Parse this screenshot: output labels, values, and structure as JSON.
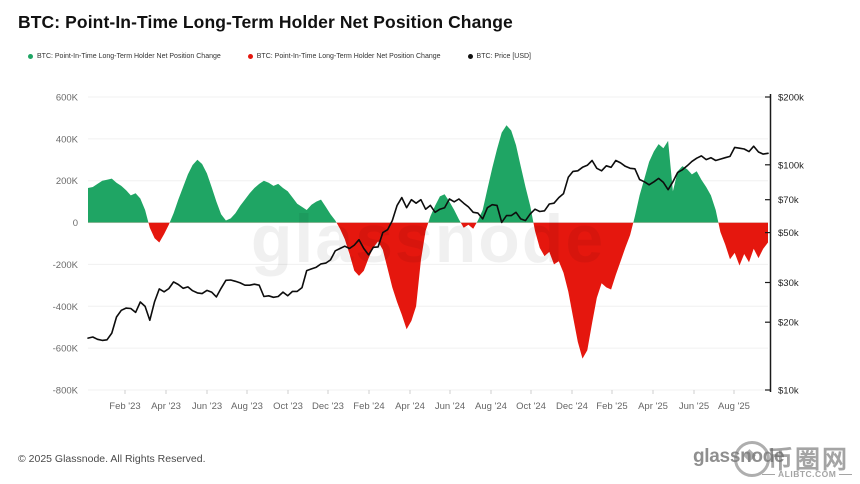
{
  "title": "BTC: Point-In-Time Long-Term Holder Net Position Change",
  "legend": [
    {
      "label": "BTC: Point-In-Time Long-Term Holder Net Position Change",
      "color": "#1fa564"
    },
    {
      "label": "BTC: Point-In-Time Long-Term Holder Net Position Change",
      "color": "#e5170e"
    },
    {
      "label": "BTC: Price [USD]",
      "color": "#111111"
    }
  ],
  "footer": {
    "copyright": "© 2025 Glassnode. All Rights Reserved.",
    "logo_text": "glassnode"
  },
  "watermark": {
    "center_text": "glassnode",
    "stamp_chars": "币圈网",
    "stamp_site": "ALIBTC.COM"
  },
  "colors": {
    "positive": "#1fa564",
    "negative": "#e5170e",
    "price_line": "#0d0d0d",
    "grid": "#f0f0f0",
    "left_tick_text": "#6b6b6b",
    "right_tick_text": "#1f1f1f",
    "x_tick_text": "#666666",
    "right_axis_line": "#1a1a1a"
  },
  "chart_data": {
    "type": "area+line",
    "x_range": {
      "start": "Dec 2022",
      "end": "Sep 2025",
      "sampling": "weekly"
    },
    "x_tick_labels": [
      "Feb '23",
      "Apr '23",
      "Jun '23",
      "Aug '23",
      "Oct '23",
      "Dec '23",
      "Feb '24",
      "Apr '24",
      "Jun '24",
      "Aug '24",
      "Oct '24",
      "Dec '24",
      "Feb '25",
      "Apr '25",
      "Jun '25",
      "Aug '25"
    ],
    "left_axis": {
      "ticks": [
        "600K",
        "400K",
        "200K",
        "0",
        "-200K",
        "-400K",
        "-600K",
        "-800K"
      ],
      "max_kBTC": 600,
      "min_kBTC": -800,
      "scale": "linear"
    },
    "right_axis": {
      "ticks": [
        "$200k",
        "$100k",
        "$70k",
        "$50k",
        "$30k",
        "$20k",
        "$10k"
      ],
      "tick_values_kUSD": [
        200,
        100,
        70,
        50,
        30,
        20,
        10
      ],
      "max_kUSD": 200,
      "min_kUSD": 10,
      "scale": "log"
    },
    "series": [
      {
        "name": "BTC: Point-In-Time Long-Term Holder Net Position Change",
        "axis": "left",
        "unit": "kBTC",
        "style": "area, green when positive, red when negative",
        "values_kBTC": [
          165,
          170,
          185,
          200,
          205,
          210,
          190,
          175,
          155,
          130,
          140,
          115,
          60,
          -25,
          -75,
          -95,
          -55,
          -10,
          45,
          110,
          170,
          230,
          275,
          300,
          280,
          235,
          170,
          100,
          40,
          10,
          20,
          45,
          80,
          110,
          140,
          165,
          185,
          200,
          190,
          175,
          185,
          165,
          150,
          120,
          90,
          75,
          60,
          85,
          100,
          110,
          75,
          40,
          10,
          -30,
          -80,
          -150,
          -230,
          -255,
          -230,
          -170,
          -120,
          -90,
          -130,
          -220,
          -310,
          -380,
          -440,
          -510,
          -470,
          -400,
          -180,
          -40,
          30,
          80,
          125,
          135,
          100,
          60,
          15,
          -25,
          -10,
          -30,
          10,
          60,
          160,
          260,
          350,
          430,
          465,
          440,
          370,
          270,
          170,
          80,
          -40,
          -120,
          -160,
          -140,
          -200,
          -185,
          -240,
          -330,
          -450,
          -570,
          -650,
          -610,
          -480,
          -360,
          -290,
          -310,
          -320,
          -250,
          -185,
          -120,
          -60,
          30,
          130,
          210,
          290,
          340,
          375,
          355,
          390,
          150,
          245,
          270,
          255,
          230,
          245,
          205,
          170,
          130,
          60,
          -45,
          -105,
          -175,
          -145,
          -205,
          -150,
          -190,
          -125,
          -170,
          -125,
          -95
        ]
      },
      {
        "name": "BTC: Price [USD]",
        "axis": "right",
        "unit": "kUSD",
        "style": "line, black, log scale",
        "values_kUSD": [
          17.0,
          17.2,
          16.8,
          16.6,
          16.7,
          17.9,
          21.1,
          22.6,
          23.1,
          23.0,
          22.1,
          24.6,
          23.5,
          20.4,
          24.7,
          28.1,
          27.3,
          28.2,
          30.2,
          29.4,
          28.3,
          28.7,
          27.6,
          27.0,
          26.8,
          27.7,
          27.2,
          25.9,
          28.3,
          30.7,
          30.8,
          30.4,
          29.9,
          29.2,
          29.2,
          29.5,
          29.2,
          26.0,
          26.2,
          25.8,
          26.0,
          27.2,
          26.2,
          27.4,
          27.4,
          28.5,
          33.9,
          34.5,
          35.1,
          36.3,
          36.6,
          37.8,
          41.5,
          42.5,
          43.5,
          42.5,
          44.0,
          46.5,
          42.5,
          39.8,
          43.0,
          43.2,
          50.0,
          51.5,
          56.5,
          66.0,
          71.5,
          64.5,
          70.0,
          67.5,
          70.0,
          63.5,
          66.0,
          61.5,
          63.5,
          64.5,
          70.5,
          68.5,
          70.5,
          67.5,
          65.0,
          61.5,
          61.0,
          57.5,
          64.5,
          66.5,
          66.0,
          55.5,
          59.5,
          59.5,
          61.5,
          57.5,
          56.5,
          60.5,
          63.5,
          62.0,
          62.5,
          67.0,
          67.5,
          71.5,
          74.5,
          88.0,
          93.5,
          94.0,
          97.5,
          99.5,
          104.5,
          96.5,
          94.0,
          99.0,
          97.5,
          104.5,
          102.0,
          98.5,
          96.5,
          96.0,
          86.0,
          84.0,
          81.5,
          84.0,
          87.0,
          83.5,
          77.5,
          84.0,
          92.5,
          95.0,
          99.0,
          103.5,
          107.0,
          109.5,
          105.5,
          107.5,
          104.5,
          106.0,
          107.5,
          109.0,
          119.5,
          118.5,
          117.5,
          114.5,
          121.0,
          114.0,
          111.5,
          112.5
        ]
      }
    ]
  }
}
